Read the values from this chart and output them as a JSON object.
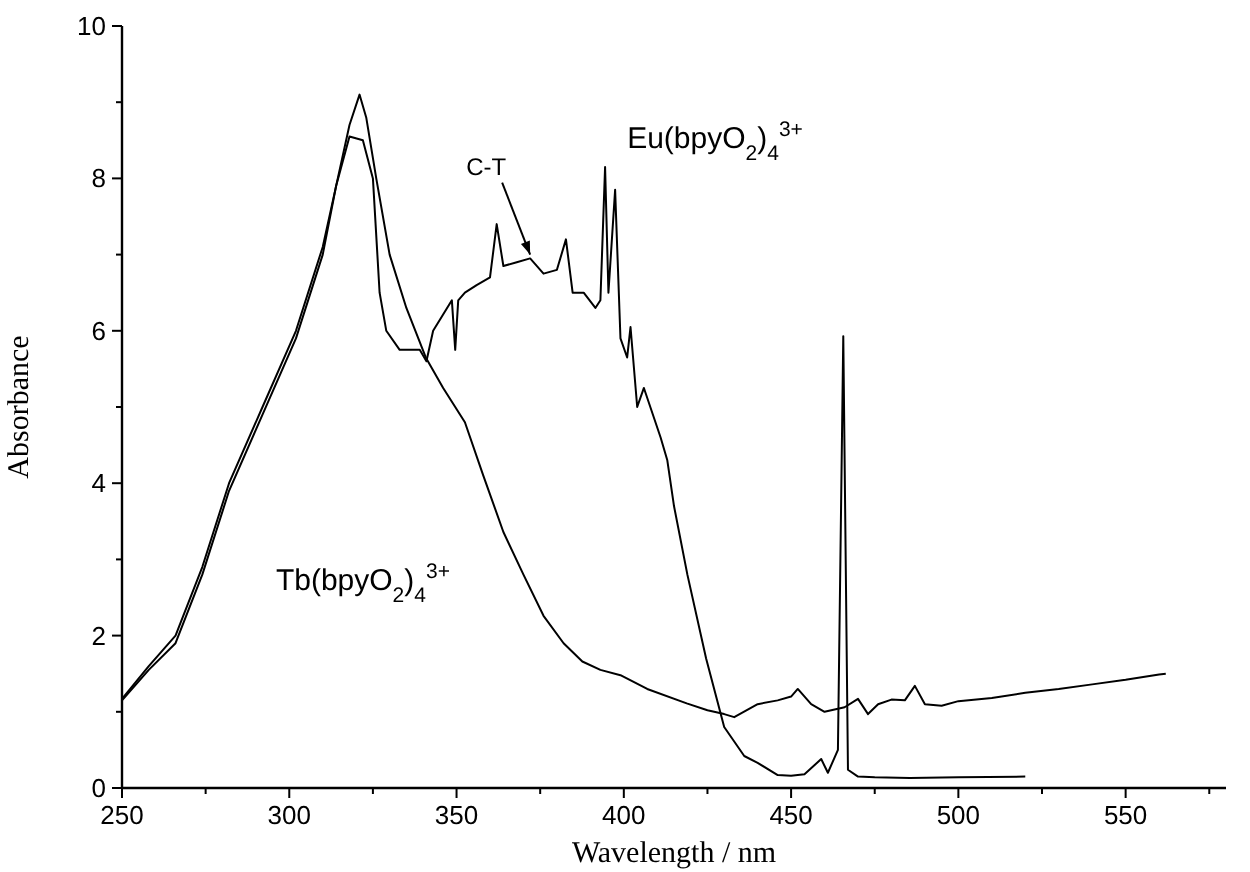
{
  "chart_data": {
    "type": "line",
    "xlabel": "Wavelength / nm",
    "ylabel": "Absorbance",
    "xlim": [
      250,
      580
    ],
    "ylim": [
      0,
      10
    ],
    "xticks": [
      250,
      {
        "value": 275,
        "label": null
      },
      300,
      {
        "value": 325,
        "label": null
      },
      350,
      {
        "value": 375,
        "label": null
      },
      400,
      {
        "value": 425,
        "label": null
      },
      450,
      {
        "value": 475,
        "label": null
      },
      500,
      {
        "value": 525,
        "label": null
      },
      550,
      {
        "value": 575,
        "label": null
      }
    ],
    "yticks": [
      0,
      {
        "value": 1,
        "label": null
      },
      2,
      {
        "value": 3,
        "label": null
      },
      4,
      {
        "value": 5,
        "label": null
      },
      6,
      {
        "value": 7,
        "label": null
      },
      8,
      {
        "value": 9,
        "label": null
      },
      10
    ],
    "grid": false,
    "marker": "none",
    "line_style": "solid",
    "annotations": [
      {
        "text": "C-T",
        "x": 372,
        "y": 7.0
      }
    ],
    "series": [
      {
        "name": "Tb(bpyO$_{2}$)$_{4}$$^{3+}$",
        "color": "#000000",
        "x": [
          250,
          258,
          266,
          274,
          282,
          292,
          302,
          310,
          314.5,
          318,
          321,
          323,
          326,
          330,
          335,
          340.8,
          346,
          352.5,
          358,
          364,
          370,
          376,
          382,
          387.6,
          393,
          399,
          407,
          418.8,
          425,
          430,
          433,
          440,
          446,
          450,
          452,
          456,
          460,
          466,
          470,
          473,
          476,
          480,
          484,
          487,
          490,
          495,
          500,
          510,
          520,
          530,
          540,
          550,
          560,
          562
        ],
        "values": [
          1.17,
          1.6,
          2.0,
          2.9,
          4.0,
          5.0,
          6.0,
          7.1,
          8.0,
          8.7,
          9.1,
          8.8,
          8.0,
          7.0,
          6.3,
          5.65,
          5.25,
          4.8,
          4.1,
          3.36,
          2.8,
          2.26,
          1.9,
          1.66,
          1.55,
          1.48,
          1.3,
          1.11,
          1.02,
          0.97,
          0.93,
          1.1,
          1.15,
          1.2,
          1.3,
          1.1,
          1.0,
          1.06,
          1.17,
          0.97,
          1.1,
          1.16,
          1.15,
          1.34,
          1.1,
          1.08,
          1.14,
          1.18,
          1.25,
          1.3,
          1.36,
          1.42,
          1.49,
          1.5
        ]
      },
      {
        "name": "Eu(bpyO$_{2}$)$_{4}$$^{3+}$",
        "color": "#000000",
        "x": [
          250,
          258,
          266,
          274,
          282,
          292,
          302,
          310,
          314,
          318,
          322,
          325,
          327,
          329,
          333,
          339,
          341,
          343,
          348.6,
          349.6,
          350.5,
          352.5,
          356,
          360,
          362,
          364,
          368,
          372,
          376,
          380,
          382.7,
          384.7,
          388,
          391.5,
          393,
          394.4,
          395.4,
          397.4,
          399,
          401,
          402,
          404,
          406,
          411,
          413,
          415,
          419,
          424.6,
          430,
          436,
          440,
          446,
          450,
          454,
          459,
          461,
          464,
          465.6,
          467,
          470,
          475,
          485.5,
          500,
          520
        ],
        "values": [
          1.15,
          1.55,
          1.9,
          2.8,
          3.9,
          4.9,
          5.9,
          7.0,
          7.9,
          8.55,
          8.5,
          8.0,
          6.5,
          6.0,
          5.75,
          5.75,
          5.6,
          6.0,
          6.4,
          5.75,
          6.4,
          6.5,
          6.6,
          6.7,
          7.4,
          6.85,
          6.9,
          6.95,
          6.75,
          6.8,
          7.2,
          6.5,
          6.5,
          6.3,
          6.4,
          8.15,
          6.5,
          7.85,
          5.9,
          5.65,
          6.05,
          5.0,
          5.25,
          4.6,
          4.3,
          3.7,
          2.8,
          1.7,
          0.8,
          0.42,
          0.33,
          0.17,
          0.16,
          0.18,
          0.38,
          0.2,
          0.5,
          5.93,
          0.24,
          0.15,
          0.14,
          0.13,
          0.14,
          0.15
        ]
      }
    ]
  }
}
